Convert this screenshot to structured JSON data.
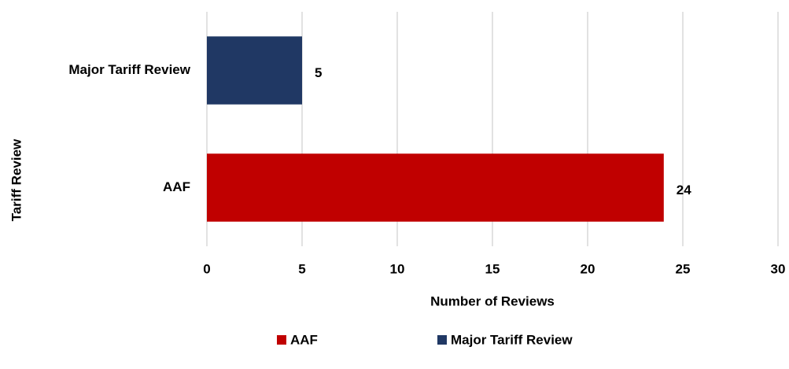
{
  "chart_data": {
    "type": "bar",
    "orientation": "horizontal",
    "categories": [
      "AAF",
      "Major Tariff Review"
    ],
    "series": [
      {
        "name": "AAF",
        "color": "#c00000",
        "values": [
          24,
          null
        ]
      },
      {
        "name": "Major Tariff Review",
        "color": "#203864",
        "values": [
          null,
          5
        ]
      }
    ],
    "x_label": "Number of Reviews",
    "y_label": "Tariff Review",
    "xlim": [
      0,
      30
    ],
    "xticks": [
      0,
      5,
      10,
      15,
      20,
      25,
      30
    ],
    "grid": true,
    "legend": "bottom"
  }
}
